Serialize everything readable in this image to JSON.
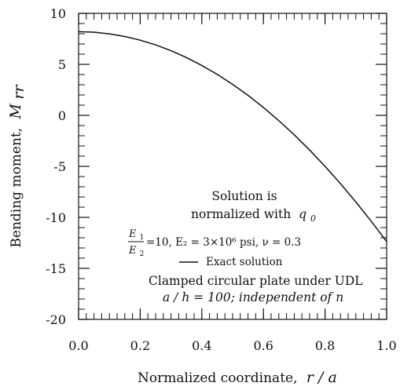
{
  "chart_data": {
    "type": "line",
    "xlabel": "Normalized coordinate,",
    "xlabel_var": "r / a",
    "ylabel": "Bending moment,",
    "ylabel_var": "M",
    "ylabel_sub": "rr",
    "xlim": [
      0.0,
      1.0
    ],
    "ylim": [
      -20,
      10
    ],
    "x_ticks": [
      "0.0",
      "0.2",
      "0.4",
      "0.6",
      "0.8",
      "1.0"
    ],
    "x_tick_values": [
      0.0,
      0.2,
      0.4,
      0.6,
      0.8,
      1.0
    ],
    "y_ticks": [
      "10",
      "5",
      "0",
      "-5",
      "-10",
      "-15",
      "-20"
    ],
    "y_tick_values": [
      10,
      5,
      0,
      -5,
      -10,
      -15,
      -20
    ],
    "grid": false,
    "series": [
      {
        "name": "Exact solution",
        "color": "#111111",
        "x": [
          0.0,
          0.05,
          0.1,
          0.15,
          0.2,
          0.25,
          0.3,
          0.35,
          0.4,
          0.45,
          0.5,
          0.55,
          0.6,
          0.65,
          0.7,
          0.75,
          0.8,
          0.85,
          0.9,
          0.95,
          1.0
        ],
        "y": [
          8.2,
          8.15,
          7.99,
          7.73,
          7.37,
          6.91,
          6.34,
          5.67,
          4.89,
          4.02,
          3.04,
          1.96,
          0.77,
          -0.52,
          -1.91,
          -3.4,
          -5.0,
          -6.69,
          -8.49,
          -10.38,
          -12.37
        ]
      }
    ],
    "annotations": {
      "line1": "Solution is",
      "line2": "normalized with",
      "line2_var": "q",
      "line2_sub": "0",
      "frac_num": "E",
      "frac_num_sub": "1",
      "frac_den": "E",
      "frac_den_sub": "2",
      "params": "=10,  E₂ = 3×10⁶ psi, ν = 0.3",
      "legend_label": "Exact solution",
      "case_line1": "Clamped circular plate under UDL",
      "case_line2": "a / h = 100; independent of n"
    }
  }
}
